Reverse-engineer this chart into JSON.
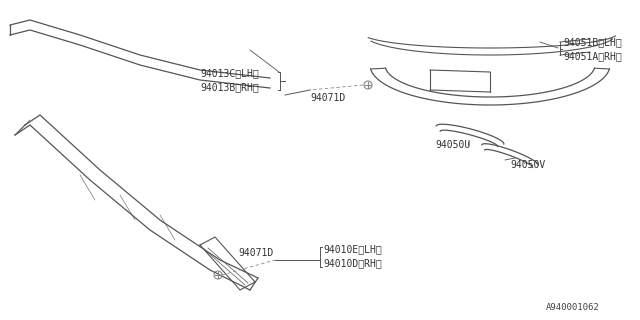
{
  "bg_color": "#ffffff",
  "line_color": "#555555",
  "text_color": "#333333",
  "part_number_fontsize": 7,
  "diagram_id": "A940001062",
  "parts": [
    {
      "id": "94071D",
      "label": "94071D"
    },
    {
      "id": "94010D",
      "label": "94010D〈RH〉"
    },
    {
      "id": "94010E",
      "label": "94010E〈LH〉"
    },
    {
      "id": "94050U",
      "label": "94050U"
    },
    {
      "id": "94050V",
      "label": "94050V"
    },
    {
      "id": "94013B",
      "label": "94013B〈RH〉"
    },
    {
      "id": "94013C",
      "label": "94013C〈LH〉"
    },
    {
      "id": "94071D_2",
      "label": "94071D"
    },
    {
      "id": "94051A",
      "label": "94051A〈RH〉"
    },
    {
      "id": "94051B",
      "label": "94051B〈LH〉"
    }
  ]
}
